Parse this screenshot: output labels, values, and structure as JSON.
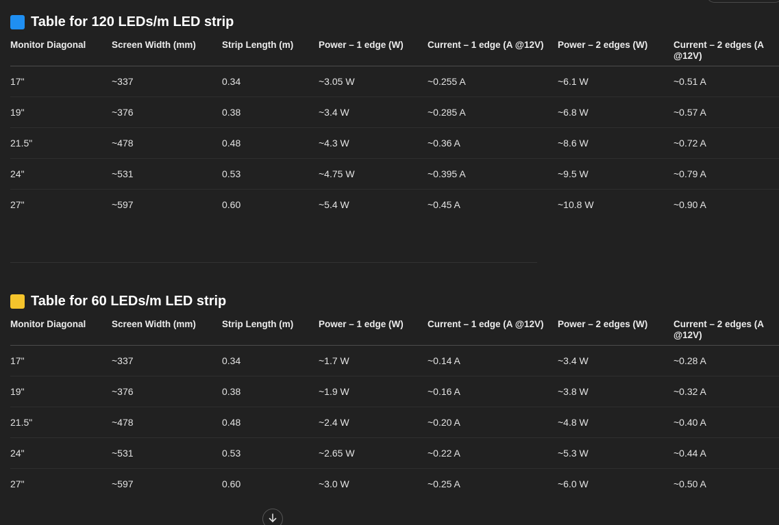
{
  "colors": {
    "background": "#212121",
    "blue_square": "#1f8ff2",
    "yellow_square": "#f5c42c",
    "text": "#ececec"
  },
  "icons": {
    "blue": "blue-square-icon",
    "yellow": "yellow-square-icon",
    "scroll": "arrow-down-icon"
  },
  "headers": [
    "Monitor Diagonal",
    "Screen Width (mm)",
    "Strip Length (m)",
    "Power – 1 edge (W)",
    "Current – 1 edge (A @12V)",
    "Power – 2 edges (W)",
    "Current – 2 edges (A @12V)"
  ],
  "tables": [
    {
      "title": "Table for 120 LEDs/m LED strip",
      "rows": [
        [
          "17\"",
          "~337",
          "0.34",
          "~3.05 W",
          "~0.255 A",
          "~6.1 W",
          "~0.51 A"
        ],
        [
          "19\"",
          "~376",
          "0.38",
          "~3.4 W",
          "~0.285 A",
          "~6.8 W",
          "~0.57 A"
        ],
        [
          "21.5\"",
          "~478",
          "0.48",
          "~4.3 W",
          "~0.36 A",
          "~8.6 W",
          "~0.72 A"
        ],
        [
          "24\"",
          "~531",
          "0.53",
          "~4.75 W",
          "~0.395 A",
          "~9.5 W",
          "~0.79 A"
        ],
        [
          "27\"",
          "~597",
          "0.60",
          "~5.4 W",
          "~0.45 A",
          "~10.8 W",
          "~0.90 A"
        ]
      ]
    },
    {
      "title": "Table for 60 LEDs/m LED strip",
      "rows": [
        [
          "17\"",
          "~337",
          "0.34",
          "~1.7 W",
          "~0.14 A",
          "~3.4 W",
          "~0.28 A"
        ],
        [
          "19\"",
          "~376",
          "0.38",
          "~1.9 W",
          "~0.16 A",
          "~3.8 W",
          "~0.32 A"
        ],
        [
          "21.5\"",
          "~478",
          "0.48",
          "~2.4 W",
          "~0.20 A",
          "~4.8 W",
          "~0.40 A"
        ],
        [
          "24\"",
          "~531",
          "0.53",
          "~2.65 W",
          "~0.22 A",
          "~5.3 W",
          "~0.44 A"
        ],
        [
          "27\"",
          "~597",
          "0.60",
          "~3.0 W",
          "~0.25 A",
          "~6.0 W",
          "~0.50 A"
        ]
      ]
    }
  ]
}
